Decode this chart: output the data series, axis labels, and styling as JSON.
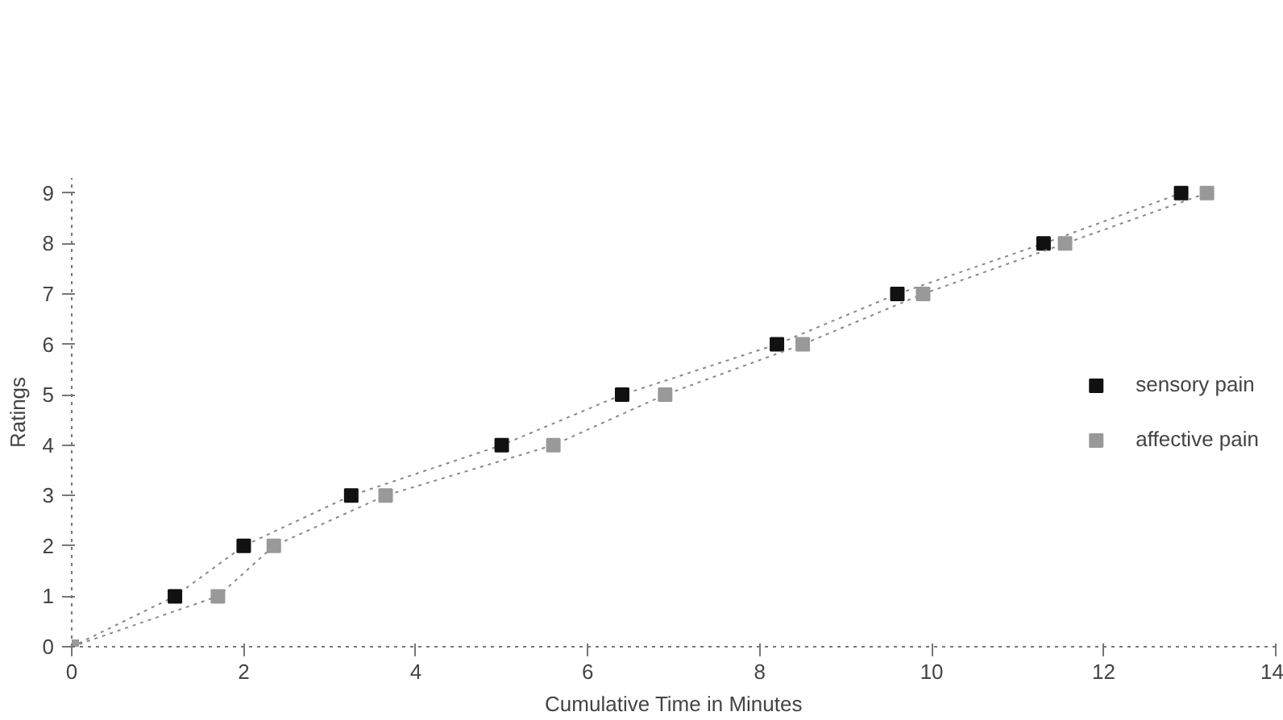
{
  "chart_data": {
    "type": "line",
    "xlabel": "Cumulative Time in Minutes",
    "ylabel": "Ratings",
    "xlim": [
      0,
      14
    ],
    "ylim": [
      0,
      9.3
    ],
    "xticks": [
      0,
      2,
      4,
      6,
      8,
      10,
      12,
      14
    ],
    "yticks": [
      0,
      1,
      2,
      3,
      4,
      5,
      6,
      7,
      8,
      9
    ],
    "grid": false,
    "legend": "right",
    "line_style": "dotted",
    "series": [
      {
        "name": "sensory pain",
        "color": "#111111",
        "marker": "square",
        "x": [
          0,
          1.2,
          2.0,
          3.25,
          5.0,
          6.4,
          8.2,
          9.6,
          11.3,
          12.9
        ],
        "values": [
          0,
          1,
          2,
          3,
          4,
          5,
          6,
          7,
          8,
          9
        ]
      },
      {
        "name": "affective pain",
        "color": "#999999",
        "marker": "square",
        "x": [
          0,
          1.7,
          2.35,
          3.65,
          5.6,
          6.9,
          8.5,
          9.9,
          11.55,
          13.2
        ],
        "values": [
          0,
          1,
          2,
          3,
          4,
          5,
          6,
          7,
          8,
          9
        ]
      }
    ]
  }
}
